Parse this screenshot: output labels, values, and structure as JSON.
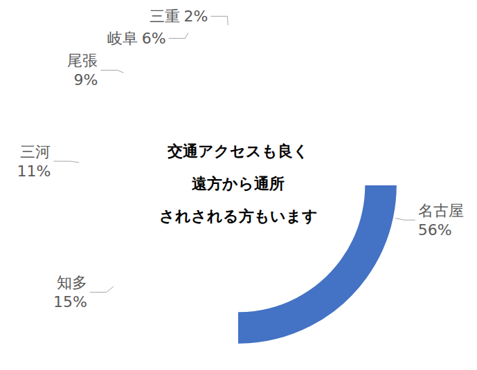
{
  "chart_data": {
    "type": "donut",
    "categories": [
      "名古屋",
      "知多",
      "三河",
      "尾張",
      "岐阜",
      "三重"
    ],
    "values": [
      56,
      15,
      11,
      9,
      6,
      2
    ],
    "value_labels": [
      "56%",
      "15%",
      "11%",
      "9%",
      "6%",
      "2%"
    ],
    "colors": [
      "#4472c4",
      "#ed7d31",
      "#a5a5a5",
      "#ffc000",
      "#5b9bd5",
      "#70ad47"
    ],
    "data_labels": true,
    "annotations": [
      "交通アクセスも良く",
      "遠方から通所",
      "されされる方もいます"
    ]
  }
}
